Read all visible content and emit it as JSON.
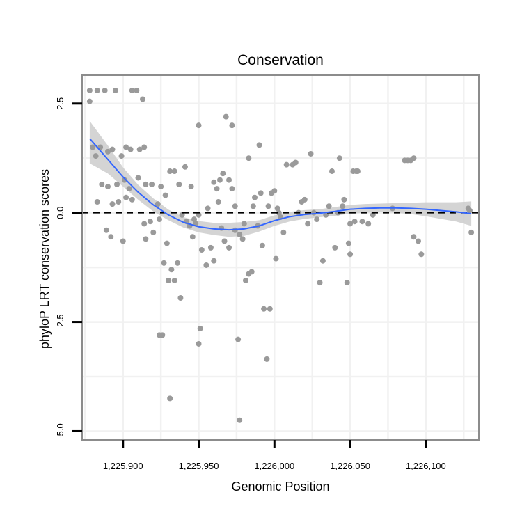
{
  "chart_data": {
    "type": "scatter",
    "title": "Conservation",
    "xlabel": "Genomic Position",
    "ylabel": "phyloP LRT conservation scores",
    "xlim": [
      1225873,
      1226135
    ],
    "ylim": [
      -5.2,
      3.15
    ],
    "x_ticks": [
      {
        "value": 1225900,
        "label": "1,225,900"
      },
      {
        "value": 1225950,
        "label": "1,225,950"
      },
      {
        "value": 1226000,
        "label": "1,226,000"
      },
      {
        "value": 1226050,
        "label": "1,226,050"
      },
      {
        "value": 1226100,
        "label": "1,226,100"
      }
    ],
    "y_ticks": [
      {
        "value": 2.5,
        "label": "2.5"
      },
      {
        "value": 0.0,
        "label": "0.0"
      },
      {
        "value": -2.5,
        "label": "-2.5"
      },
      {
        "value": -5.0,
        "label": "-5.0"
      }
    ],
    "reference_line": {
      "y": 0,
      "style": "dashed"
    },
    "colors": {
      "points": "#9a9a9a",
      "smooth_line": "#3366ff",
      "ribbon": "#cccccc",
      "grid": "#f1f1f1",
      "panel_border": "#8c8c8c"
    },
    "series": [
      {
        "name": "phyloP scores",
        "kind": "points",
        "points": [
          [
            1225878,
            2.8
          ],
          [
            1225878,
            2.55
          ],
          [
            1225883,
            2.8
          ],
          [
            1225888,
            2.8
          ],
          [
            1225895,
            2.8
          ],
          [
            1225906,
            2.8
          ],
          [
            1225909,
            2.8
          ],
          [
            1225913,
            2.6
          ],
          [
            1225880,
            1.5
          ],
          [
            1225882,
            1.3
          ],
          [
            1225885,
            1.5
          ],
          [
            1225890,
            1.4
          ],
          [
            1225893,
            1.45
          ],
          [
            1225899,
            1.3
          ],
          [
            1225902,
            1.5
          ],
          [
            1225905,
            1.45
          ],
          [
            1225911,
            1.45
          ],
          [
            1225914,
            1.5
          ],
          [
            1225886,
            0.65
          ],
          [
            1225890,
            0.6
          ],
          [
            1225896,
            0.65
          ],
          [
            1225901,
            0.75
          ],
          [
            1225904,
            0.55
          ],
          [
            1225910,
            0.8
          ],
          [
            1225915,
            0.65
          ],
          [
            1225883,
            0.25
          ],
          [
            1225893,
            0.2
          ],
          [
            1225897,
            0.25
          ],
          [
            1225902,
            0.35
          ],
          [
            1225906,
            0.3
          ],
          [
            1225889,
            -0.4
          ],
          [
            1225892,
            -0.55
          ],
          [
            1225900,
            -0.65
          ],
          [
            1225914,
            -0.25
          ],
          [
            1225918,
            -0.2
          ],
          [
            1225920,
            -0.45
          ],
          [
            1225924,
            -0.15
          ],
          [
            1225915,
            -0.6
          ],
          [
            1225919,
            0.65
          ],
          [
            1225923,
            0.2
          ],
          [
            1225925,
            0.6
          ],
          [
            1225928,
            0.4
          ],
          [
            1225929,
            -0.7
          ],
          [
            1225931,
            0.95
          ],
          [
            1225934,
            0.95
          ],
          [
            1225937,
            0.65
          ],
          [
            1225941,
            1.05
          ],
          [
            1225945,
            0.6
          ],
          [
            1225927,
            -1.15
          ],
          [
            1225930,
            -1.55
          ],
          [
            1225932,
            -1.3
          ],
          [
            1225934,
            -1.55
          ],
          [
            1225936,
            -1.15
          ],
          [
            1225938,
            -1.95
          ],
          [
            1225939,
            -0.05
          ],
          [
            1225942,
            -0.2
          ],
          [
            1225944,
            -0.3
          ],
          [
            1225946,
            -0.55
          ],
          [
            1225947,
            -0.15
          ],
          [
            1225948,
            -0.25
          ],
          [
            1225950,
            -0.05
          ],
          [
            1225952,
            -0.85
          ],
          [
            1225955,
            -1.2
          ],
          [
            1225958,
            -0.8
          ],
          [
            1225960,
            -1.1
          ],
          [
            1225924,
            -2.8
          ],
          [
            1225926,
            -2.8
          ],
          [
            1225931,
            -4.25
          ],
          [
            1225951,
            -2.65
          ],
          [
            1225950,
            -3.0
          ],
          [
            1225950,
            2.0
          ],
          [
            1225960,
            0.7
          ],
          [
            1225962,
            0.55
          ],
          [
            1225964,
            0.75
          ],
          [
            1225966,
            0.9
          ],
          [
            1225970,
            0.75
          ],
          [
            1225972,
            0.55
          ],
          [
            1225974,
            0.15
          ],
          [
            1225968,
            2.2
          ],
          [
            1225972,
            2.0
          ],
          [
            1225956,
            0.1
          ],
          [
            1225963,
            0.25
          ],
          [
            1225965,
            -0.35
          ],
          [
            1225967,
            -0.65
          ],
          [
            1225970,
            -0.8
          ],
          [
            1225974,
            -0.4
          ],
          [
            1225977,
            -0.5
          ],
          [
            1225979,
            -0.6
          ],
          [
            1225980,
            -0.25
          ],
          [
            1225976,
            -2.9
          ],
          [
            1225977,
            -4.75
          ],
          [
            1225981,
            -1.55
          ],
          [
            1225983,
            -1.4
          ],
          [
            1225985,
            -1.35
          ],
          [
            1225983,
            1.25
          ],
          [
            1225986,
            0.15
          ],
          [
            1225987,
            0.35
          ],
          [
            1225989,
            -0.3
          ],
          [
            1225991,
            0.45
          ],
          [
            1225992,
            -0.75
          ],
          [
            1225990,
            1.55
          ],
          [
            1225993,
            -2.2
          ],
          [
            1225995,
            -3.35
          ],
          [
            1225997,
            -2.2
          ],
          [
            1225996,
            0.15
          ],
          [
            1225998,
            0.45
          ],
          [
            1226000,
            0.5
          ],
          [
            1226002,
            0.1
          ],
          [
            1226004,
            -0.1
          ],
          [
            1226006,
            -0.45
          ],
          [
            1226001,
            -1.05
          ],
          [
            1226003,
            0.0
          ],
          [
            1226008,
            1.1
          ],
          [
            1226012,
            1.1
          ],
          [
            1226014,
            1.15
          ],
          [
            1226016,
            0.0
          ],
          [
            1226018,
            0.25
          ],
          [
            1226020,
            0.3
          ],
          [
            1226022,
            -0.25
          ],
          [
            1226024,
            1.35
          ],
          [
            1226026,
            0.0
          ],
          [
            1226028,
            -0.15
          ],
          [
            1226030,
            -1.6
          ],
          [
            1226032,
            -1.1
          ],
          [
            1226034,
            -0.05
          ],
          [
            1226036,
            0.15
          ],
          [
            1226038,
            0.95
          ],
          [
            1226040,
            -0.8
          ],
          [
            1226042,
            0.0
          ],
          [
            1226043,
            1.25
          ],
          [
            1226045,
            0.15
          ],
          [
            1226046,
            0.3
          ],
          [
            1226048,
            -1.6
          ],
          [
            1226049,
            -0.7
          ],
          [
            1226052,
            0.95
          ],
          [
            1226054,
            0.95
          ],
          [
            1226055,
            0.95
          ],
          [
            1226050,
            -0.95
          ],
          [
            1226050,
            -0.25
          ],
          [
            1226053,
            -0.2
          ],
          [
            1226058,
            -0.2
          ],
          [
            1226062,
            -0.25
          ],
          [
            1226065,
            -0.05
          ],
          [
            1226078,
            0.1
          ],
          [
            1226086,
            1.2
          ],
          [
            1226088,
            1.2
          ],
          [
            1226090,
            1.2
          ],
          [
            1226092,
            1.25
          ],
          [
            1226092,
            -0.55
          ],
          [
            1226095,
            -0.65
          ],
          [
            1226097,
            -0.95
          ],
          [
            1226128,
            0.1
          ],
          [
            1226130,
            -0.45
          ],
          [
            1226129,
            0.05
          ]
        ]
      },
      {
        "name": "smooth fit",
        "kind": "line",
        "x": [
          1225878,
          1225890,
          1225900,
          1225910,
          1225920,
          1225930,
          1225940,
          1225950,
          1225960,
          1225970,
          1225980,
          1225990,
          1226000,
          1226010,
          1226020,
          1226030,
          1226040,
          1226050,
          1226060,
          1226070,
          1226080,
          1226090,
          1226100,
          1226110,
          1226120,
          1226130
        ],
        "y": [
          1.7,
          1.22,
          0.82,
          0.47,
          0.18,
          -0.05,
          -0.22,
          -0.32,
          -0.37,
          -0.39,
          -0.37,
          -0.3,
          -0.18,
          -0.09,
          -0.04,
          -0.01,
          0.03,
          0.08,
          0.1,
          0.11,
          0.11,
          0.1,
          0.08,
          0.05,
          0.02,
          -0.02
        ],
        "ci_low": [
          1.13,
          0.9,
          0.6,
          0.3,
          0.03,
          -0.17,
          -0.34,
          -0.45,
          -0.51,
          -0.55,
          -0.53,
          -0.43,
          -0.3,
          -0.2,
          -0.14,
          -0.1,
          -0.07,
          -0.02,
          0.0,
          0.01,
          0.0,
          -0.03,
          -0.08,
          -0.14,
          -0.2,
          -0.3
        ],
        "ci_high": [
          2.1,
          1.54,
          1.04,
          0.64,
          0.33,
          0.07,
          -0.1,
          -0.19,
          -0.23,
          -0.23,
          -0.21,
          -0.17,
          -0.06,
          0.02,
          0.06,
          0.08,
          0.13,
          0.18,
          0.2,
          0.21,
          0.22,
          0.23,
          0.24,
          0.24,
          0.24,
          0.26
        ]
      }
    ]
  }
}
